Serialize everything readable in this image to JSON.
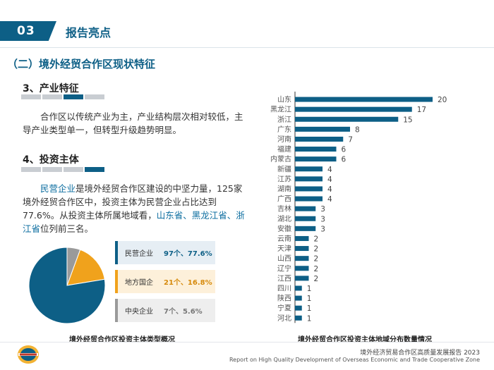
{
  "header": {
    "number": "03",
    "title": "报告亮点"
  },
  "section_title": "（二）境外经贸合作区现状特征",
  "industry": {
    "title": "3、产业特征",
    "body": "合作区以传统产业为主，产业结构层次相对较低，主导产业类型单一，但转型升级趋势明显。"
  },
  "investor": {
    "title": "4、投资主体",
    "body_part1": "民营企业",
    "body_part2": "是境外经贸合作区建设的中坚力量，125家境外经贸合作区中，投资主体为民营企业占比达到77.6%。从投资主体所属地域看，",
    "body_part3": "山东省、黑龙江省、浙江省",
    "body_part4": "位列前三名。"
  },
  "pie_cards": [
    {
      "label": "民营企业",
      "value": "97个、77.6%"
    },
    {
      "label": "地方国企",
      "value": "21个、16.8%"
    },
    {
      "label": "中央企业",
      "value": "7个、5.6%"
    }
  ],
  "captions": {
    "pie": "境外经贸合作区投资主体类型概况",
    "bar": "境外经贸合作区投资主体地域分布数量情况"
  },
  "colors": {
    "primary": "#0d5f86",
    "orange": "#f0a21c",
    "grey": "#9a9a9a"
  },
  "chart_data": [
    {
      "type": "pie",
      "title": "境外经贸合作区投资主体类型概况",
      "categories": [
        "民营企业",
        "地方国企",
        "中央企业"
      ],
      "values": [
        97,
        21,
        7
      ],
      "percentages": [
        77.6,
        16.8,
        5.6
      ]
    },
    {
      "type": "bar",
      "orientation": "horizontal",
      "title": "境外经贸合作区投资主体地域分布数量情况",
      "categories": [
        "山东",
        "黑龙江",
        "浙江",
        "广东",
        "河南",
        "福建",
        "内蒙古",
        "新疆",
        "江苏",
        "湖南",
        "广西",
        "吉林",
        "湖北",
        "安徽",
        "云南",
        "天津",
        "山西",
        "辽宁",
        "江西",
        "四川",
        "陕西",
        "宁夏",
        "河北"
      ],
      "values": [
        20,
        17,
        15,
        8,
        7,
        6,
        6,
        4,
        4,
        4,
        4,
        3,
        3,
        3,
        2,
        2,
        2,
        2,
        2,
        1,
        1,
        1,
        1
      ],
      "xlim": [
        0,
        20
      ]
    }
  ],
  "footer": {
    "cn": "境外经济贸易合作区高质量发展报告 2023",
    "en": "Report on High Quality Development of Overseas Economic and Trade Cooperative Zone"
  }
}
